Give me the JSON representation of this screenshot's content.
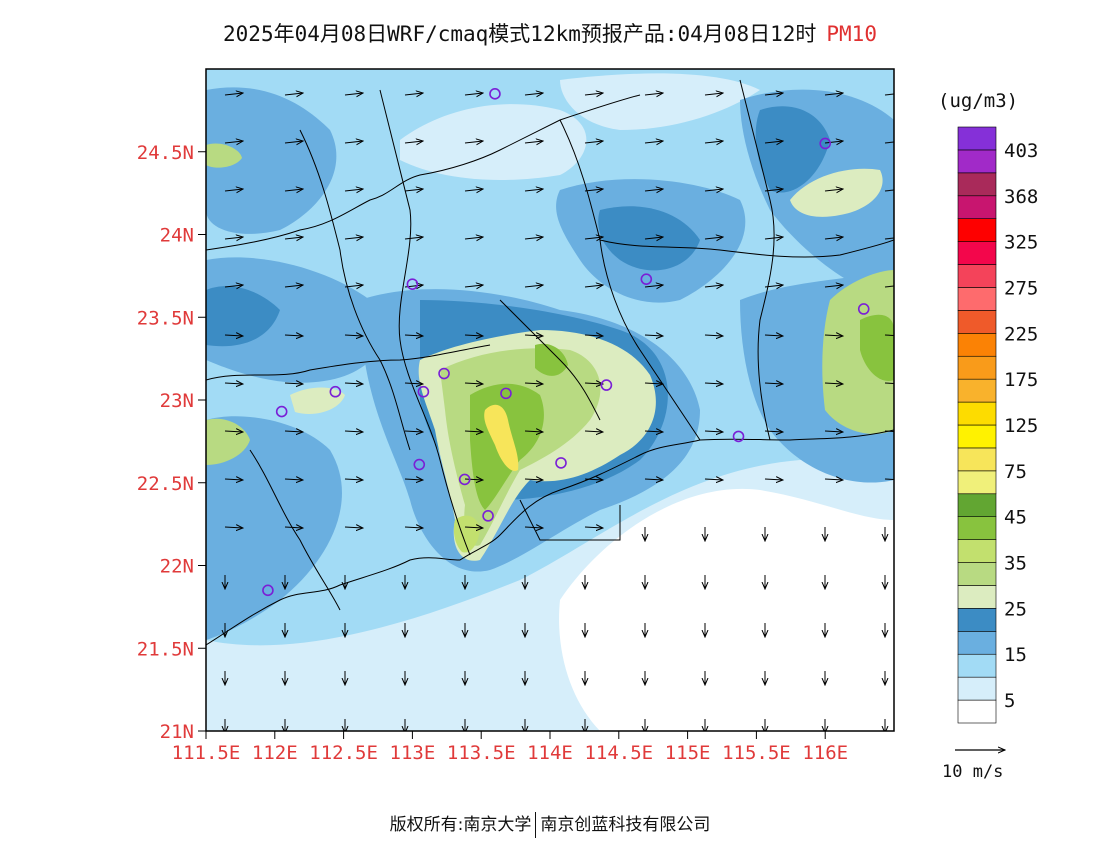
{
  "title": {
    "text": "2025年04月08日WRF/cmaq模式12km预报产品:04月08日12时",
    "variable": "PM10"
  },
  "map": {
    "lon_range": [
      111.5,
      116.5
    ],
    "lat_range": [
      21.0,
      25.0
    ],
    "lat_ticks": [
      {
        "value": 24.5,
        "label": "24.5N"
      },
      {
        "value": 24.0,
        "label": "24N"
      },
      {
        "value": 23.5,
        "label": "23.5N"
      },
      {
        "value": 23.0,
        "label": "23N"
      },
      {
        "value": 22.5,
        "label": "22.5N"
      },
      {
        "value": 22.0,
        "label": "22N"
      },
      {
        "value": 21.5,
        "label": "21.5N"
      },
      {
        "value": 21.0,
        "label": "21N"
      }
    ],
    "lon_ticks": [
      {
        "value": 111.5,
        "label": "111.5E"
      },
      {
        "value": 112.0,
        "label": "112E"
      },
      {
        "value": 112.5,
        "label": "112.5E"
      },
      {
        "value": 113.0,
        "label": "113E"
      },
      {
        "value": 113.5,
        "label": "113.5E"
      },
      {
        "value": 114.0,
        "label": "114E"
      },
      {
        "value": 114.5,
        "label": "114.5E"
      },
      {
        "value": 115.0,
        "label": "115E"
      },
      {
        "value": 115.5,
        "label": "115.5E"
      },
      {
        "value": 116.0,
        "label": "116E"
      }
    ],
    "stations": [
      {
        "lon": 113.6,
        "lat": 24.85
      },
      {
        "lon": 116.0,
        "lat": 24.55
      },
      {
        "lon": 113.0,
        "lat": 23.7
      },
      {
        "lon": 114.7,
        "lat": 23.73
      },
      {
        "lon": 116.28,
        "lat": 23.55
      },
      {
        "lon": 112.44,
        "lat": 23.05
      },
      {
        "lon": 112.05,
        "lat": 22.93
      },
      {
        "lon": 113.08,
        "lat": 23.05
      },
      {
        "lon": 113.23,
        "lat": 23.16
      },
      {
        "lon": 113.68,
        "lat": 23.04
      },
      {
        "lon": 114.41,
        "lat": 23.09
      },
      {
        "lon": 115.37,
        "lat": 22.78
      },
      {
        "lon": 113.05,
        "lat": 22.61
      },
      {
        "lon": 113.38,
        "lat": 22.52
      },
      {
        "lon": 114.08,
        "lat": 22.62
      },
      {
        "lon": 113.55,
        "lat": 22.3
      },
      {
        "lon": 111.95,
        "lat": 21.85
      }
    ]
  },
  "colorbar": {
    "unit": "(ug/m3)",
    "colors": [
      "#ffffff",
      "#d6eefa",
      "#a2dbf5",
      "#6aafe0",
      "#3c8cc4",
      "#dcecc0",
      "#b8da82",
      "#c2e06e",
      "#88c33e",
      "#62a632",
      "#f0f07a",
      "#f7e55a",
      "#fff200",
      "#fddc00",
      "#f9b22c",
      "#f99b1a",
      "#fb8205",
      "#ef5a2a",
      "#fe6b6d",
      "#f4435a",
      "#f3064b",
      "#fe0000",
      "#c8156f",
      "#a92a5a",
      "#a12ac8",
      "#8530d8"
    ],
    "labels": [
      "5",
      "15",
      "25",
      "35",
      "45",
      "75",
      "125",
      "175",
      "225",
      "275",
      "325",
      "368",
      "403"
    ]
  },
  "wind_reference": {
    "label": "10 m/s"
  },
  "footer": {
    "left": "版权所有:南京大学",
    "right": "南京创蓝科技有限公司"
  }
}
